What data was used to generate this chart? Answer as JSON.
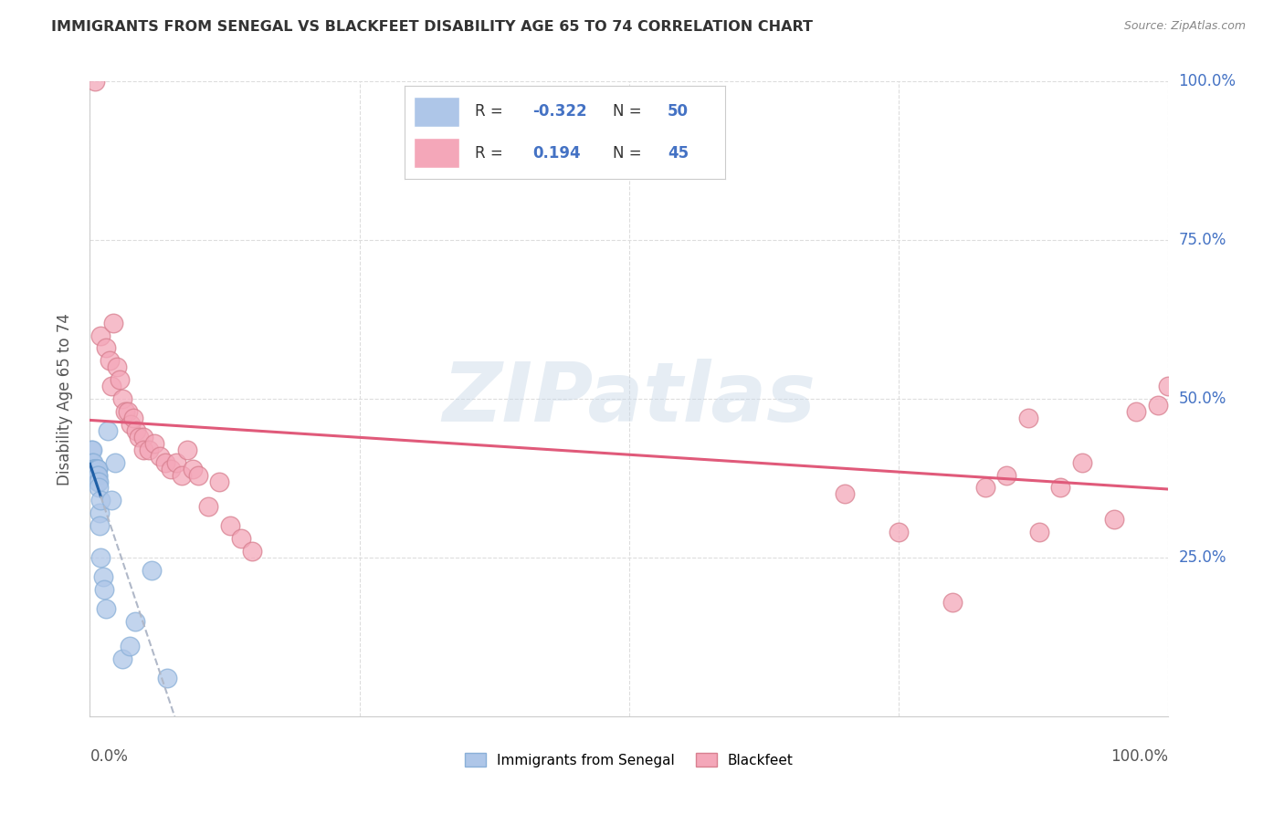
{
  "title": "IMMIGRANTS FROM SENEGAL VS BLACKFEET DISABILITY AGE 65 TO 74 CORRELATION CHART",
  "source": "Source: ZipAtlas.com",
  "ylabel": "Disability Age 65 to 74",
  "right_yticks": [
    "100.0%",
    "75.0%",
    "50.0%",
    "25.0%"
  ],
  "right_ytick_vals": [
    1.0,
    0.75,
    0.5,
    0.25
  ],
  "legend_label1": "Immigrants from Senegal",
  "legend_label2": "Blackfeet",
  "R1": -0.322,
  "N1": 50,
  "R2": 0.194,
  "N2": 45,
  "color_blue": "#aec6e8",
  "color_blue_line": "#1f5fa6",
  "color_pink": "#f4a7b9",
  "color_pink_line": "#e05a7a",
  "color_dashed": "#b0b8c8",
  "blue_x": [
    0.001,
    0.001,
    0.002,
    0.002,
    0.002,
    0.002,
    0.003,
    0.003,
    0.003,
    0.004,
    0.004,
    0.004,
    0.004,
    0.005,
    0.005,
    0.005,
    0.005,
    0.005,
    0.005,
    0.005,
    0.005,
    0.005,
    0.005,
    0.006,
    0.006,
    0.006,
    0.006,
    0.006,
    0.007,
    0.007,
    0.007,
    0.007,
    0.007,
    0.008,
    0.008,
    0.009,
    0.009,
    0.01,
    0.01,
    0.012,
    0.013,
    0.015,
    0.017,
    0.02,
    0.023,
    0.03,
    0.037,
    0.042,
    0.057,
    0.072
  ],
  "blue_y": [
    0.42,
    0.38,
    0.42,
    0.4,
    0.39,
    0.38,
    0.4,
    0.39,
    0.38,
    0.39,
    0.39,
    0.39,
    0.38,
    0.39,
    0.39,
    0.38,
    0.38,
    0.38,
    0.38,
    0.38,
    0.38,
    0.38,
    0.38,
    0.39,
    0.39,
    0.39,
    0.38,
    0.38,
    0.39,
    0.39,
    0.38,
    0.38,
    0.37,
    0.37,
    0.36,
    0.32,
    0.3,
    0.34,
    0.25,
    0.22,
    0.2,
    0.17,
    0.45,
    0.34,
    0.4,
    0.09,
    0.11,
    0.15,
    0.23,
    0.06
  ],
  "pink_x": [
    0.005,
    0.01,
    0.015,
    0.018,
    0.02,
    0.022,
    0.025,
    0.028,
    0.03,
    0.033,
    0.035,
    0.038,
    0.04,
    0.043,
    0.045,
    0.05,
    0.05,
    0.055,
    0.06,
    0.065,
    0.07,
    0.075,
    0.08,
    0.085,
    0.09,
    0.095,
    0.1,
    0.11,
    0.12,
    0.13,
    0.14,
    0.15,
    0.7,
    0.75,
    0.8,
    0.83,
    0.85,
    0.87,
    0.88,
    0.9,
    0.92,
    0.95,
    0.97,
    0.99,
    1.0
  ],
  "pink_y": [
    1.0,
    0.6,
    0.58,
    0.56,
    0.52,
    0.62,
    0.55,
    0.53,
    0.5,
    0.48,
    0.48,
    0.46,
    0.47,
    0.45,
    0.44,
    0.44,
    0.42,
    0.42,
    0.43,
    0.41,
    0.4,
    0.39,
    0.4,
    0.38,
    0.42,
    0.39,
    0.38,
    0.33,
    0.37,
    0.3,
    0.28,
    0.26,
    0.35,
    0.29,
    0.18,
    0.36,
    0.38,
    0.47,
    0.29,
    0.36,
    0.4,
    0.31,
    0.48,
    0.49,
    0.52
  ]
}
